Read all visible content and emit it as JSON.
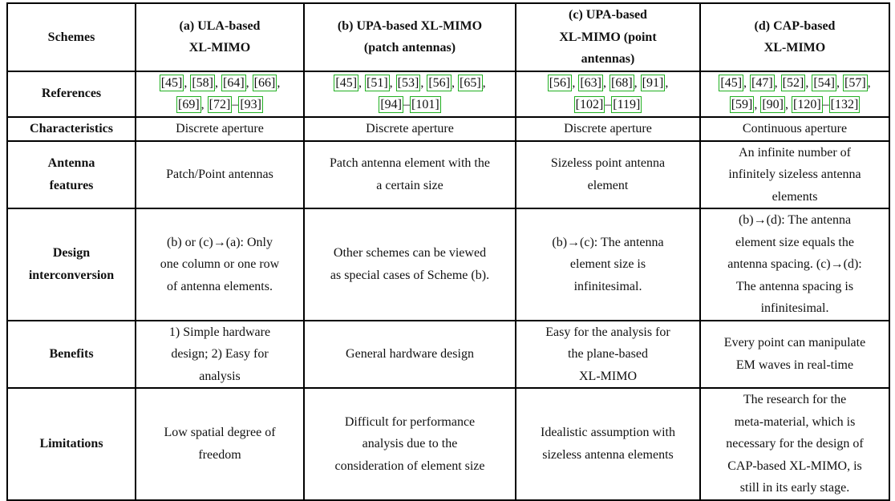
{
  "header": {
    "schemes": "Schemes",
    "col_a": [
      "(a) ULA-based",
      "XL-MIMO"
    ],
    "col_b": [
      "(b) UPA-based XL-MIMO",
      "(patch antennas)"
    ],
    "col_c": [
      "(c) UPA-based",
      "XL-MIMO (point",
      "antennas)"
    ],
    "col_d": [
      "(d) CAP-based",
      "XL-MIMO"
    ]
  },
  "references": {
    "label": "References",
    "a": [
      [
        "[45]",
        ", "
      ],
      [
        "[58]",
        ", "
      ],
      [
        "[64]",
        ", "
      ],
      [
        "[66]",
        ","
      ],
      [
        "[69]",
        ", "
      ],
      [
        "[72]",
        "–"
      ],
      [
        "[93]",
        ""
      ]
    ],
    "b": [
      [
        "[45]",
        ", "
      ],
      [
        "[51]",
        ", "
      ],
      [
        "[53]",
        ", "
      ],
      [
        "[56]",
        ", "
      ],
      [
        "[65]",
        ","
      ],
      [
        "[94]",
        "–"
      ],
      [
        "[101]",
        ""
      ]
    ],
    "c": [
      [
        "[56]",
        ", "
      ],
      [
        "[63]",
        ", "
      ],
      [
        "[68]",
        ", "
      ],
      [
        "[91]",
        ","
      ],
      [
        "[102]",
        "–"
      ],
      [
        "[119]",
        ""
      ]
    ],
    "d": [
      [
        "[45]",
        ", "
      ],
      [
        "[47]",
        ", "
      ],
      [
        "[52]",
        ", "
      ],
      [
        "[54]",
        ", "
      ],
      [
        "[57]",
        ","
      ],
      [
        "[59]",
        ", "
      ],
      [
        "[90]",
        ", "
      ],
      [
        "[120]",
        "–"
      ],
      [
        "[132]",
        ""
      ]
    ]
  },
  "ref_breaks": {
    "a": 4,
    "b": 5,
    "c": 4,
    "d": 5
  },
  "rows": [
    {
      "key": "characteristics",
      "label": [
        "Characteristics"
      ],
      "a": [
        "Discrete aperture"
      ],
      "b": [
        "Discrete aperture"
      ],
      "c": [
        "Discrete aperture"
      ],
      "d": [
        "Continuous aperture"
      ]
    },
    {
      "key": "antenna-features",
      "label": [
        "Antenna",
        "features"
      ],
      "a": [
        "Patch/Point antennas"
      ],
      "b": [
        "Patch antenna element with the",
        "a certain size"
      ],
      "c": [
        "Sizeless point antenna",
        "element"
      ],
      "d": [
        "An infinite number of",
        "infinitely sizeless antenna",
        "elements"
      ]
    },
    {
      "key": "design-interconversion",
      "label": [
        "Design",
        "interconversion"
      ],
      "a": [
        "(b) or (c)→(a): Only",
        "one column or one row",
        "of antenna elements."
      ],
      "b": [
        "Other schemes can be viewed",
        "as special cases of Scheme (b)."
      ],
      "c": [
        "(b)→(c): The antenna",
        "element size is",
        "infinitesimal."
      ],
      "d": [
        "(b)→(d): The antenna",
        "element size equals the",
        "antenna spacing. (c)→(d):",
        "The antenna spacing is",
        "infinitesimal."
      ]
    },
    {
      "key": "benefits",
      "label": [
        "Benefits"
      ],
      "a": [
        "1) Simple hardware",
        "design; 2) Easy for",
        "analysis"
      ],
      "b": [
        "General hardware design"
      ],
      "c": [
        "Easy for the analysis for",
        "the plane-based",
        "XL-MIMO"
      ],
      "d": [
        "Every point can manipulate",
        "EM waves in real-time"
      ]
    },
    {
      "key": "limitations",
      "label": [
        "Limitations"
      ],
      "a": [
        "Low spatial degree of",
        "freedom"
      ],
      "b": [
        "Difficult for performance",
        "analysis due to the",
        "consideration of element size"
      ],
      "c": [
        "Idealistic assumption with",
        "sizeless antenna elements"
      ],
      "d": [
        "The research for the",
        "meta-material, which is",
        "necessary for the design of",
        "CAP-based XL-MIMO, is",
        "still in its early stage."
      ]
    }
  ]
}
